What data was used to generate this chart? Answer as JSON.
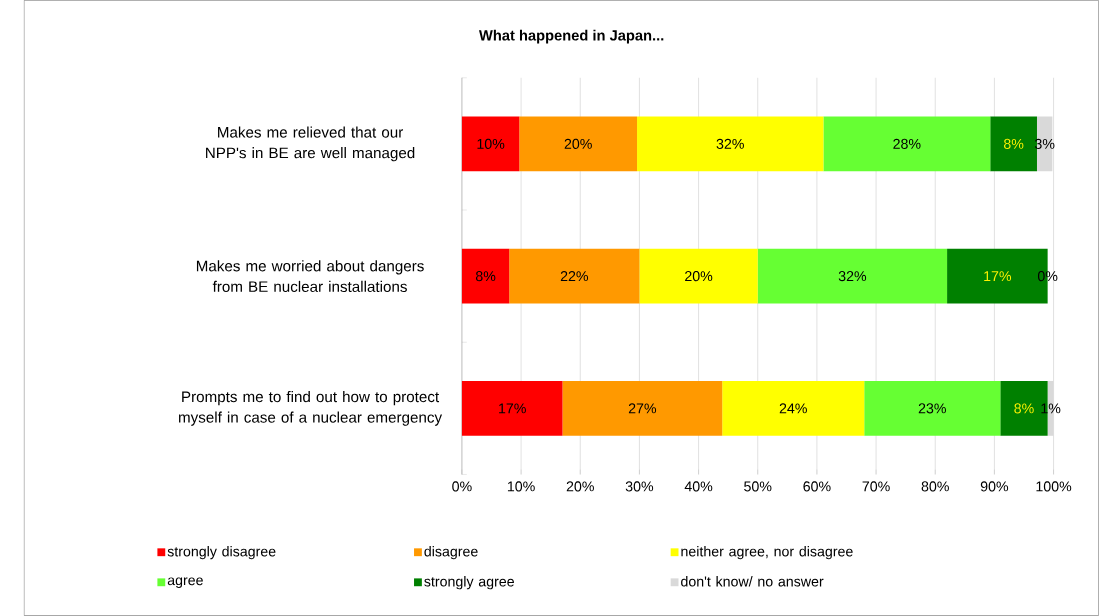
{
  "chart_data": {
    "type": "bar",
    "orientation": "horizontal",
    "stacked": true,
    "title": "What happened in Japan...",
    "categories": [
      "Makes me relieved that our NPP's in BE are well managed",
      "Makes me worried about dangers from BE nuclear installations",
      "Prompts me to find out how to protect myself in case of a nuclear emergency"
    ],
    "series": [
      {
        "name": "strongly disagree",
        "color": "#ff0000",
        "values": [
          9.7,
          8,
          17
        ],
        "value_labels": [
          "10%",
          "8%",
          "17%"
        ]
      },
      {
        "name": "disagree",
        "color": "#ff9900",
        "values": [
          19.9,
          22,
          27
        ],
        "value_labels": [
          "20%",
          "22%",
          "27%"
        ]
      },
      {
        "name": "neither agree, nor disagree",
        "color": "#ffff00",
        "values": [
          31.5,
          20,
          24
        ],
        "value_labels": [
          "32%",
          "20%",
          "24%"
        ]
      },
      {
        "name": "agree",
        "color": "#66ff33",
        "values": [
          28.2,
          32,
          23
        ],
        "value_labels": [
          "28%",
          "32%",
          "23%"
        ]
      },
      {
        "name": "strongly agree",
        "color": "#008000",
        "values": [
          7.9,
          17,
          8
        ],
        "value_labels": [
          "8%",
          "17%",
          "8%"
        ]
      },
      {
        "name": "don't know/ no answer",
        "color": "#d9d9d9",
        "values": [
          2.6,
          0,
          1
        ],
        "value_labels": [
          "3%",
          "0%",
          "1%"
        ]
      }
    ],
    "xlim": [
      0,
      100
    ],
    "xticks": [
      {
        "value": 0,
        "label": "0%"
      },
      {
        "value": 10,
        "label": "10%"
      },
      {
        "value": 20,
        "label": "20%"
      },
      {
        "value": 30,
        "label": "30%"
      },
      {
        "value": 40,
        "label": "40%"
      },
      {
        "value": 50,
        "label": "50%"
      },
      {
        "value": 60,
        "label": "60%"
      },
      {
        "value": 70,
        "label": "70%"
      },
      {
        "value": 80,
        "label": "80%"
      },
      {
        "value": 90,
        "label": "90%"
      },
      {
        "value": 100,
        "label": "100%"
      }
    ],
    "grid": "x",
    "legend": "bottom"
  }
}
